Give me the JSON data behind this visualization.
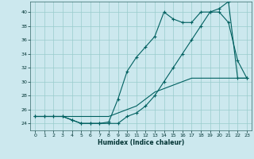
{
  "title": "",
  "xlabel": "Humidex (Indice chaleur)",
  "background_color": "#cce8ee",
  "line_color": "#006060",
  "grid_color": "#99cccc",
  "xlim": [
    -0.5,
    23.5
  ],
  "ylim": [
    23.0,
    41.5
  ],
  "yticks": [
    24,
    26,
    28,
    30,
    32,
    34,
    36,
    38,
    40
  ],
  "xticks": [
    0,
    1,
    2,
    3,
    4,
    5,
    6,
    7,
    8,
    9,
    10,
    11,
    12,
    13,
    14,
    15,
    16,
    17,
    18,
    19,
    20,
    21,
    22,
    23
  ],
  "series1_x": [
    0,
    1,
    2,
    3,
    4,
    5,
    6,
    7,
    8,
    9,
    10,
    11,
    12,
    13,
    14,
    15,
    16,
    17,
    18,
    19,
    20,
    21,
    22,
    23
  ],
  "series1_y": [
    25,
    25,
    25,
    25,
    24.5,
    24,
    24,
    24,
    24.2,
    27.5,
    31.5,
    33.5,
    35,
    36.5,
    40,
    39,
    38.5,
    38.5,
    40,
    40,
    40,
    38.5,
    33,
    30.5
  ],
  "series2_x": [
    0,
    1,
    2,
    3,
    4,
    5,
    6,
    7,
    8,
    9,
    10,
    11,
    12,
    13,
    14,
    15,
    16,
    17,
    18,
    19,
    20,
    21,
    22,
    23
  ],
  "series2_y": [
    25,
    25,
    25,
    25,
    24.5,
    24,
    24,
    24,
    24,
    24,
    25,
    25.5,
    26.5,
    28,
    30,
    32,
    34,
    36,
    38,
    40,
    40.5,
    41.5,
    30.5,
    30.5
  ],
  "series3_x": [
    0,
    1,
    2,
    3,
    4,
    5,
    6,
    7,
    8,
    9,
    10,
    11,
    12,
    13,
    14,
    15,
    16,
    17,
    18,
    19,
    20,
    21,
    22,
    23
  ],
  "series3_y": [
    25,
    25,
    25,
    25,
    25,
    25,
    25,
    25,
    25,
    25.5,
    26,
    26.5,
    27.5,
    28.5,
    29,
    29.5,
    30,
    30.5,
    30.5,
    30.5,
    30.5,
    30.5,
    30.5,
    30.5
  ]
}
